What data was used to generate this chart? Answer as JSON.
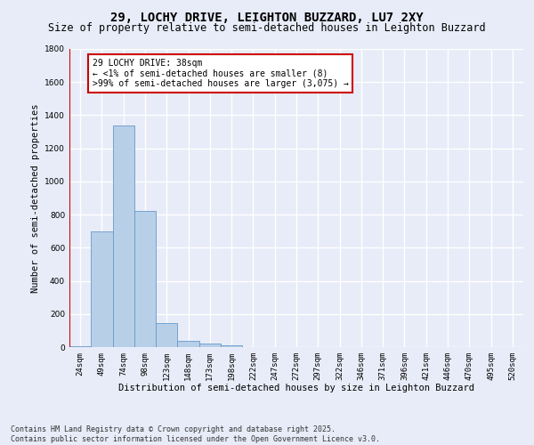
{
  "title1": "29, LOCHY DRIVE, LEIGHTON BUZZARD, LU7 2XY",
  "title2": "Size of property relative to semi-detached houses in Leighton Buzzard",
  "xlabel": "Distribution of semi-detached houses by size in Leighton Buzzard",
  "ylabel": "Number of semi-detached properties",
  "categories": [
    "24sqm",
    "49sqm",
    "74sqm",
    "98sqm",
    "123sqm",
    "148sqm",
    "173sqm",
    "198sqm",
    "222sqm",
    "247sqm",
    "272sqm",
    "297sqm",
    "322sqm",
    "346sqm",
    "371sqm",
    "396sqm",
    "421sqm",
    "446sqm",
    "470sqm",
    "495sqm",
    "520sqm"
  ],
  "values": [
    8,
    700,
    1340,
    820,
    145,
    38,
    22,
    12,
    0,
    0,
    0,
    0,
    0,
    0,
    0,
    0,
    0,
    0,
    0,
    0,
    0
  ],
  "bar_color": "#b8cfe8",
  "bar_edge_color": "#6699cc",
  "highlight_color": "#cc0000",
  "annotation_text": "29 LOCHY DRIVE: 38sqm\n← <1% of semi-detached houses are smaller (8)\n>99% of semi-detached houses are larger (3,075) →",
  "annotation_box_color": "#ffffff",
  "annotation_box_edge_color": "#cc0000",
  "ylim": [
    0,
    1800
  ],
  "yticks": [
    0,
    200,
    400,
    600,
    800,
    1000,
    1200,
    1400,
    1600,
    1800
  ],
  "footer": "Contains HM Land Registry data © Crown copyright and database right 2025.\nContains public sector information licensed under the Open Government Licence v3.0.",
  "background_color": "#e8ecf8",
  "grid_color": "#ffffff",
  "title_fontsize": 10,
  "subtitle_fontsize": 8.5,
  "axis_label_fontsize": 7.5,
  "tick_fontsize": 6.5,
  "footer_fontsize": 6.0,
  "annotation_fontsize": 7.0
}
